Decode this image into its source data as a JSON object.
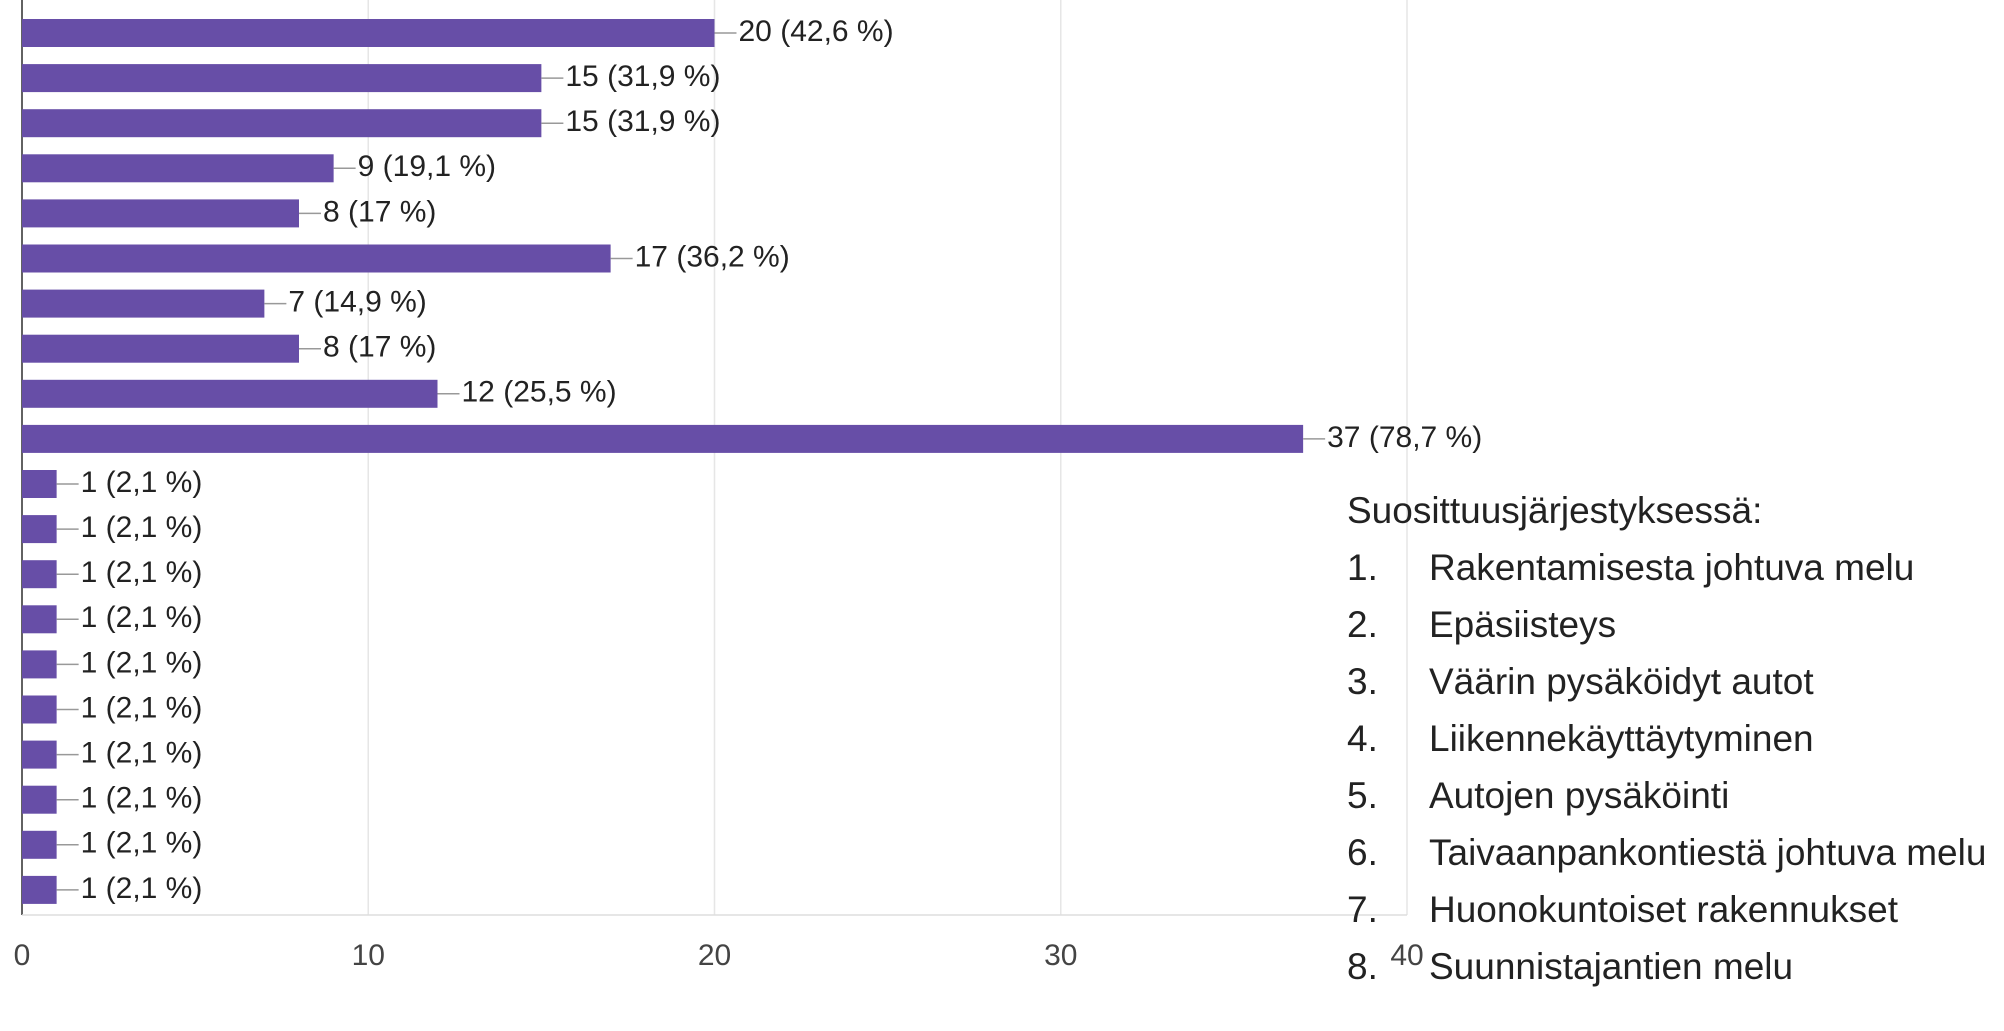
{
  "chart_data": {
    "type": "bar",
    "orientation": "horizontal",
    "categories": [
      null,
      null,
      null,
      null,
      null,
      null,
      null,
      null,
      null,
      null,
      null,
      null,
      null,
      null,
      null,
      null,
      null,
      null,
      null,
      null
    ],
    "values": [
      20,
      15,
      15,
      9,
      8,
      17,
      7,
      8,
      12,
      37,
      1,
      1,
      1,
      1,
      1,
      1,
      1,
      1,
      1,
      1
    ],
    "value_labels": [
      "20 (42,6 %)",
      "15 (31,9 %)",
      "15 (31,9 %)",
      "9 (19,1 %)",
      "8 (17 %)",
      "17 (36,2 %)",
      "7 (14,9 %)",
      "8 (17 %)",
      "12 (25,5 %)",
      "37 (78,7 %)",
      "1 (2,1 %)",
      "1 (2,1 %)",
      "1 (2,1 %)",
      "1 (2,1 %)",
      "1 (2,1 %)",
      "1 (2,1 %)",
      "1 (2,1 %)",
      "1 (2,1 %)",
      "1 (2,1 %)",
      "1 (2,1 %)"
    ],
    "color": "#674ea7",
    "xlim": [
      0,
      40
    ],
    "xticks": [
      0,
      10,
      20,
      30,
      40
    ],
    "grid": true
  },
  "annotation": {
    "heading": "Suosittuusjärjestyksessä:",
    "items": [
      {
        "marker": "1.",
        "text": "Rakentamisesta johtuva melu"
      },
      {
        "marker": "2.",
        "text": "Epäsiisteys"
      },
      {
        "marker": "3.",
        "text": "Väärin pysäköidyt autot"
      },
      {
        "marker": "4.",
        "text": "Liikennekäyttäytyminen"
      },
      {
        "marker": "5.",
        "text": "Autojen pysäköinti"
      },
      {
        "marker": "6.",
        "text": "Taivaanpankontiestä johtuva melu"
      },
      {
        "marker": "7.",
        "text": "Huonokuntoiset rakennukset"
      },
      {
        "marker": "8.",
        "text": "Suunnistajantien melu"
      }
    ]
  }
}
